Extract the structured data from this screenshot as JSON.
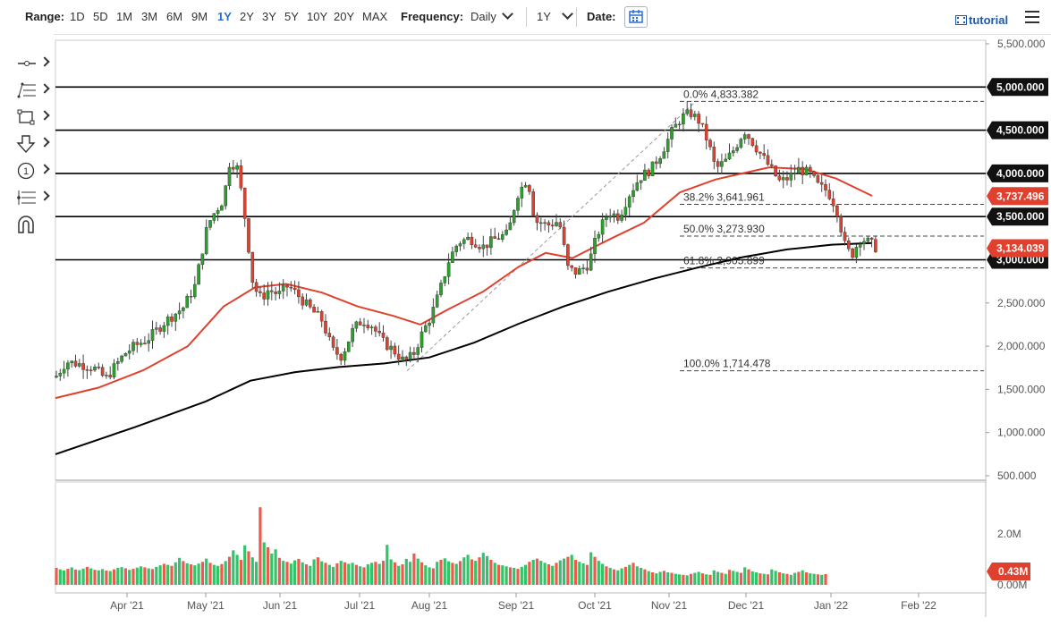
{
  "toolbar": {
    "range_label": "Range:",
    "ranges": [
      "1D",
      "5D",
      "1M",
      "3M",
      "6M",
      "9M",
      "1Y",
      "2Y",
      "3Y",
      "5Y",
      "10Y",
      "20Y",
      "MAX"
    ],
    "active_range": "1Y",
    "frequency_label": "Frequency:",
    "frequency_value": "Daily",
    "period_value": "1Y",
    "date_label": "Date:",
    "tutorial_label": "tutorial"
  },
  "icons": {
    "calendar": "calendar-icon",
    "menu": "hamburger-menu-icon",
    "tools": [
      "line-tool-icon",
      "fib-tool-icon",
      "rectangle-tool-icon",
      "arrow-down-tool-icon",
      "number-marker-tool-icon",
      "pitchfork-tool-icon",
      "magnet-icon"
    ]
  },
  "colors": {
    "up_candle": "#2ca02c",
    "down_candle": "#e0412e",
    "ma_fast": "#e0412e",
    "ma_slow": "#000000",
    "volume_up": "#33c36b",
    "volume_down": "#f05a4a",
    "price_tag_red": "#e0412e",
    "price_tag_black": "#111111"
  },
  "chart_data": {
    "type": "candlestick",
    "x_ticks": [
      "Apr '21",
      "May '21",
      "Jun '21",
      "Jul '21",
      "Aug '21",
      "Sep '21",
      "Oct '21",
      "Nov '21",
      "Dec '21",
      "Jan '22",
      "Feb '22"
    ],
    "y_ticks": [
      "5,500.000",
      "4,500.000",
      "2,500.000",
      "2,000.000",
      "1,500.000",
      "1,000.000",
      "500.000"
    ],
    "ylim": [
      500,
      5500
    ],
    "horizontal_levels": [
      {
        "value": 5000,
        "label": "5,000.000"
      },
      {
        "value": 4500,
        "label": "4,500.000"
      },
      {
        "value": 4000,
        "label": "4,000.000"
      },
      {
        "value": 3500,
        "label": "3,500.000"
      },
      {
        "value": 3000,
        "label": "3,000.000"
      }
    ],
    "fibonacci": [
      {
        "label": "0.0% 4,833.382",
        "value": 4833.382
      },
      {
        "label": "38.2% 3,641.961",
        "value": 3641.961
      },
      {
        "label": "50.0% 3,273.930",
        "value": 3273.93
      },
      {
        "label": "61.8% 2,905.899",
        "value": 2905.899
      },
      {
        "label": "100.0% 1,714.478",
        "value": 1714.478
      }
    ],
    "price_tags": [
      {
        "label": "3,737.496",
        "value": 3737.496,
        "color": "#e0412e"
      },
      {
        "label": "3,134.039",
        "value": 3134.039,
        "color": "#e0412e"
      }
    ],
    "volume_axis": [
      "2.0M",
      "0.00M"
    ],
    "volume_tag": "0.43M",
    "volume_series_m": [
      0.68,
      0.62,
      0.58,
      0.64,
      0.7,
      0.61,
      0.59,
      0.65,
      0.72,
      0.66,
      0.6,
      0.58,
      0.63,
      0.57,
      0.55,
      0.62,
      0.68,
      0.71,
      0.66,
      0.6,
      0.64,
      0.69,
      0.74,
      0.7,
      0.66,
      0.63,
      0.72,
      0.78,
      0.84,
      0.8,
      0.76,
      0.9,
      1.08,
      0.95,
      0.86,
      0.82,
      0.78,
      0.85,
      0.92,
      1.05,
      0.88,
      0.8,
      0.76,
      0.83,
      0.95,
      1.12,
      1.38,
      1.2,
      1.0,
      1.58,
      1.34,
      1.1,
      0.92,
      3.1,
      1.7,
      1.5,
      1.25,
      1.42,
      1.08,
      0.96,
      0.92,
      0.85,
      0.98,
      1.04,
      0.9,
      0.82,
      0.76,
      1.02,
      1.1,
      0.94,
      0.88,
      0.8,
      0.72,
      0.86,
      0.96,
      0.9,
      0.84,
      0.88,
      0.8,
      0.74,
      0.7,
      0.82,
      0.88,
      0.92,
      0.84,
      0.96,
      1.6,
      1.02,
      0.9,
      0.76,
      0.82,
      1.04,
      0.92,
      1.25,
      1.05,
      0.9,
      0.78,
      0.7,
      0.66,
      0.92,
      1.0,
      1.06,
      0.94,
      0.88,
      0.84,
      0.95,
      1.1,
      1.2,
      1.02,
      0.96,
      1.1,
      1.28,
      1.15,
      1.0,
      0.88,
      0.8,
      0.78,
      0.74,
      0.7,
      0.68,
      0.64,
      0.72,
      0.8,
      0.92,
      1.0,
      1.05,
      0.96,
      0.88,
      0.82,
      0.76,
      0.88,
      0.98,
      1.05,
      1.12,
      1.2,
      1.0,
      0.92,
      0.86,
      0.8,
      1.3,
      1.12,
      0.96,
      0.84,
      0.74,
      0.68,
      0.62,
      0.58,
      0.66,
      0.72,
      0.8,
      0.88,
      0.74,
      0.68,
      0.62,
      0.55,
      0.5,
      0.46,
      0.52,
      0.56,
      0.5,
      0.48,
      0.44,
      0.42,
      0.4,
      0.38,
      0.44,
      0.48,
      0.52,
      0.46,
      0.42,
      0.4,
      0.58,
      0.52,
      0.48,
      0.44,
      0.6,
      0.56,
      0.52,
      0.48,
      0.7,
      0.62,
      0.54,
      0.5,
      0.46,
      0.44,
      0.42,
      0.62,
      0.56,
      0.5,
      0.46,
      0.44,
      0.4,
      0.48,
      0.52,
      0.58,
      0.5,
      0.46,
      0.44,
      0.42,
      0.4,
      0.43
    ]
  }
}
